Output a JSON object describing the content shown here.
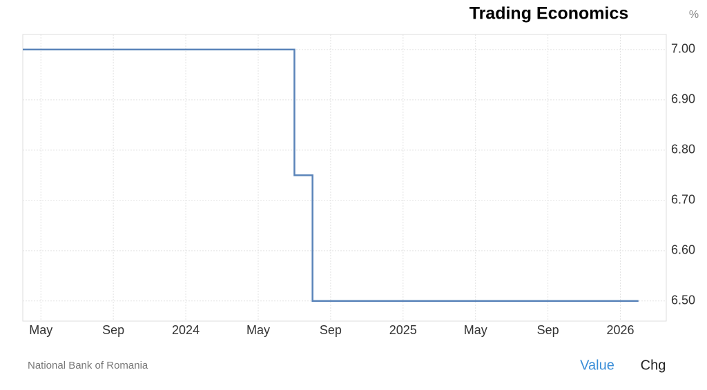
{
  "chart_data": {
    "type": "line",
    "title": "Trading Economics",
    "unit": "%",
    "source": "National Bank of Romania",
    "controls": [
      "Value",
      "Chg"
    ],
    "line_shape": "step",
    "grid": true,
    "color": "#5a84b9",
    "x": [
      "2023-04",
      "2024-07",
      "2024-08",
      "2026-02"
    ],
    "values": [
      7.0,
      6.75,
      6.5,
      6.5
    ],
    "xlim": [
      "2023-04",
      "2026-03"
    ],
    "xticks": [
      {
        "value": "2023-05",
        "label": "May"
      },
      {
        "value": "2023-09",
        "label": "Sep"
      },
      {
        "value": "2024-01",
        "label": "2024"
      },
      {
        "value": "2024-05",
        "label": "May"
      },
      {
        "value": "2024-09",
        "label": "Sep"
      },
      {
        "value": "2025-01",
        "label": "2025"
      },
      {
        "value": "2025-05",
        "label": "May"
      },
      {
        "value": "2025-09",
        "label": "Sep"
      },
      {
        "value": "2026-01",
        "label": "2026"
      }
    ],
    "ylim": [
      6.46,
      7.03
    ],
    "yticks": [
      {
        "value": 6.5,
        "label": "6.50"
      },
      {
        "value": 6.6,
        "label": "6.60"
      },
      {
        "value": 6.7,
        "label": "6.70"
      },
      {
        "value": 6.8,
        "label": "6.80"
      },
      {
        "value": 6.9,
        "label": "6.90"
      },
      {
        "value": 7.0,
        "label": "7.00"
      }
    ]
  }
}
